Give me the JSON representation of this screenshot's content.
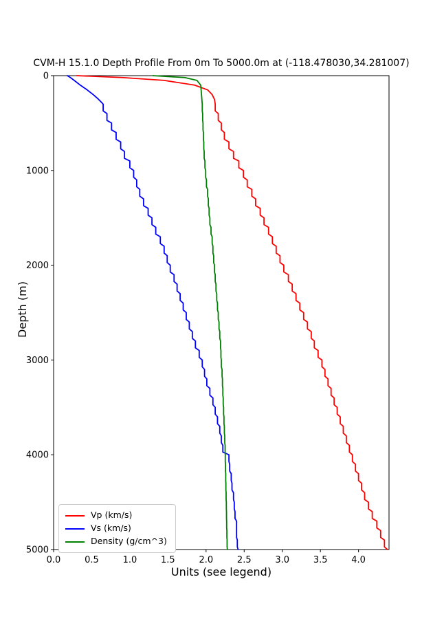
{
  "chart_data": {
    "type": "line",
    "title": "CVM-H 15.1.0 Depth Profile From 0m To 5000.0m at (-118.478030,34.281007)",
    "xlabel": "Units (see legend)",
    "ylabel": "Depth (m)",
    "xlim": [
      0.0,
      4.4
    ],
    "ylim": [
      0,
      5000
    ],
    "y_inverted": true,
    "grid": false,
    "legend_position": "lower left",
    "xticks": [
      "0.0",
      "0.5",
      "1.0",
      "1.5",
      "2.0",
      "2.5",
      "3.0",
      "3.5",
      "4.0"
    ],
    "yticks": [
      "0",
      "1000",
      "2000",
      "3000",
      "4000",
      "5000"
    ],
    "depths": [
      0,
      20,
      50,
      100,
      150,
      200,
      250,
      300,
      400,
      500,
      600,
      700,
      800,
      900,
      1000,
      1100,
      1200,
      1300,
      1400,
      1500,
      1600,
      1700,
      1800,
      1900,
      2000,
      2100,
      2200,
      2300,
      2400,
      2500,
      2600,
      2700,
      2800,
      2900,
      3000,
      3100,
      3200,
      3300,
      3400,
      3500,
      3600,
      3700,
      3800,
      3900,
      4000,
      4100,
      4200,
      4300,
      4400,
      4500,
      4600,
      4700,
      4800,
      4900,
      5000
    ],
    "series": [
      {
        "name": "vp",
        "label": "Vp (km/s)",
        "color": "#ff0000",
        "values": [
          0.3,
          0.9,
          1.45,
          1.85,
          2.02,
          2.08,
          2.11,
          2.12,
          2.16,
          2.2,
          2.24,
          2.3,
          2.36,
          2.43,
          2.49,
          2.54,
          2.6,
          2.65,
          2.71,
          2.76,
          2.82,
          2.87,
          2.92,
          2.97,
          3.02,
          3.08,
          3.13,
          3.18,
          3.23,
          3.28,
          3.33,
          3.38,
          3.42,
          3.47,
          3.52,
          3.56,
          3.6,
          3.64,
          3.68,
          3.72,
          3.76,
          3.8,
          3.84,
          3.88,
          3.92,
          3.96,
          4.0,
          4.04,
          4.08,
          4.13,
          4.18,
          4.24,
          4.29,
          4.34,
          4.38
        ]
      },
      {
        "name": "vs",
        "label": "Vs (km/s)",
        "color": "#0000ff",
        "values": [
          0.18,
          0.22,
          0.27,
          0.35,
          0.44,
          0.52,
          0.59,
          0.65,
          0.7,
          0.76,
          0.82,
          0.88,
          0.93,
          1.0,
          1.05,
          1.09,
          1.13,
          1.18,
          1.24,
          1.29,
          1.34,
          1.4,
          1.45,
          1.49,
          1.53,
          1.58,
          1.62,
          1.66,
          1.7,
          1.74,
          1.78,
          1.82,
          1.86,
          1.91,
          1.95,
          1.98,
          2.01,
          2.05,
          2.09,
          2.12,
          2.15,
          2.18,
          2.2,
          2.22,
          2.3,
          2.31,
          2.33,
          2.34,
          2.36,
          2.37,
          2.38,
          2.4,
          2.4,
          2.41,
          2.42
        ]
      },
      {
        "name": "density",
        "label": "Density (g/cm^3)",
        "color": "#008000",
        "values": [
          1.3,
          1.72,
          1.88,
          1.93,
          1.935,
          1.94,
          1.945,
          1.95,
          1.955,
          1.96,
          1.965,
          1.97,
          1.975,
          1.985,
          1.995,
          2.005,
          2.02,
          2.03,
          2.04,
          2.05,
          2.065,
          2.08,
          2.09,
          2.1,
          2.11,
          2.12,
          2.13,
          2.14,
          2.15,
          2.16,
          2.17,
          2.18,
          2.19,
          2.195,
          2.2,
          2.21,
          2.215,
          2.22,
          2.225,
          2.23,
          2.235,
          2.24,
          2.245,
          2.25,
          2.252,
          2.255,
          2.258,
          2.26,
          2.263,
          2.266,
          2.268,
          2.27,
          2.273,
          2.276,
          2.28
        ]
      }
    ]
  }
}
